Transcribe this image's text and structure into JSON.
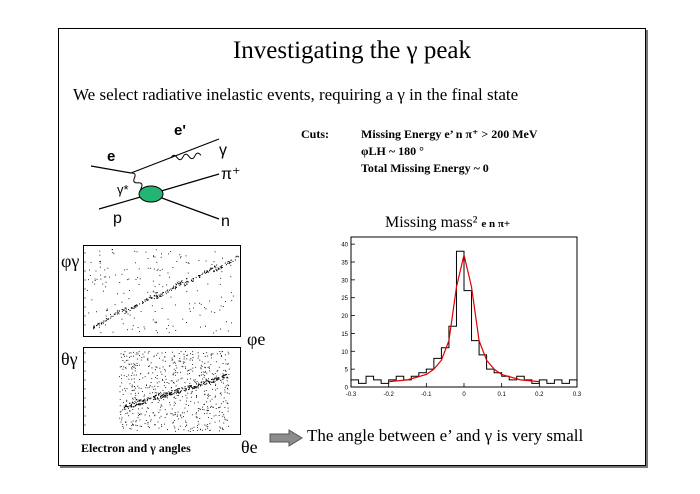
{
  "slide": {
    "title": "Investigating the γ peak",
    "subtitle": "We select radiative inelastic events, requiring a γ in the final state",
    "diagram": {
      "labels": {
        "e_prime": "e'",
        "gamma": "γ",
        "e": "e",
        "gamma_star": "γ*",
        "pi_plus": "π⁺",
        "p": "p",
        "n": "n"
      },
      "colors": {
        "blob": "#22b573",
        "lines": "#000000"
      }
    },
    "cuts": {
      "label": "Cuts:",
      "items": [
        "Missing Energy e’ n π⁺ > 200 MeV",
        "φLH ~ 180 °",
        "Total Missing Energy ~ 0"
      ]
    },
    "scatter_axes": {
      "top_y": "φγ",
      "top_x": "φe",
      "bottom_y": "θγ",
      "bottom_x": "θe"
    },
    "caption": "Electron and γ angles",
    "conclusion": "The angle between e’ and γ is very small",
    "missing_mass_title": "Missing mass²",
    "missing_mass_sub": "e n π+"
  },
  "chart_data": {
    "type": "line",
    "title": "Missing mass² e n π+",
    "xlim": [
      -0.3,
      0.3
    ],
    "ylim": [
      0,
      42
    ],
    "x_ticks": [
      "-0.3",
      "-0.2",
      "-0.1",
      "0",
      "0.1",
      "0.2",
      "0.3"
    ],
    "y_ticks": [
      "0",
      "5",
      "10",
      "15",
      "20",
      "25",
      "30",
      "35",
      "40"
    ],
    "series": [
      {
        "kind": "histogram",
        "x": [
          -0.29,
          -0.27,
          -0.25,
          -0.23,
          -0.21,
          -0.19,
          -0.17,
          -0.15,
          -0.13,
          -0.11,
          -0.09,
          -0.07,
          -0.05,
          -0.03,
          -0.01,
          0.01,
          0.03,
          0.05,
          0.07,
          0.09,
          0.11,
          0.13,
          0.15,
          0.17,
          0.19,
          0.21,
          0.23,
          0.25,
          0.27,
          0.29
        ],
        "values": [
          2,
          1,
          3,
          2,
          1,
          2,
          3,
          2,
          3,
          4,
          5,
          8,
          11,
          17,
          38,
          27,
          13,
          9,
          5,
          4,
          3,
          2,
          3,
          2,
          1,
          2,
          1,
          2,
          1,
          2
        ]
      },
      {
        "kind": "fit",
        "color": "#e00000",
        "x": [
          -0.2,
          -0.15,
          -0.1,
          -0.08,
          -0.06,
          -0.04,
          -0.02,
          0,
          0.02,
          0.04,
          0.06,
          0.08,
          0.1,
          0.15,
          0.2
        ],
        "values": [
          1.5,
          2,
          3.5,
          5,
          7.5,
          13,
          28,
          37,
          28,
          13,
          7.5,
          5,
          3.5,
          2,
          1.5
        ]
      }
    ]
  }
}
